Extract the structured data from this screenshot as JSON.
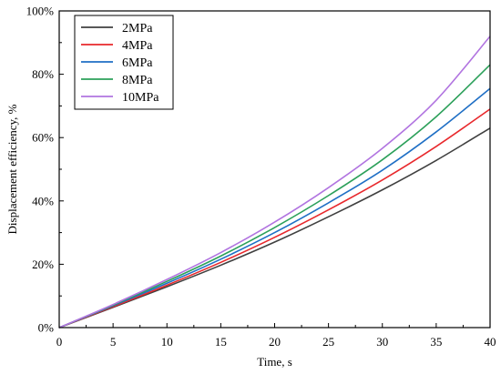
{
  "chart_data": {
    "type": "line",
    "title": "",
    "xlabel": "Time, s",
    "ylabel": "Displacement efficiency, %",
    "xlim": [
      0,
      40
    ],
    "ylim": [
      0,
      100
    ],
    "x_ticks": [
      0,
      5,
      10,
      15,
      20,
      25,
      30,
      35,
      40
    ],
    "y_ticks": [
      0,
      20,
      40,
      60,
      80,
      100
    ],
    "y_tick_suffix": "%",
    "grid": false,
    "legend_position": "top-left",
    "x": [
      0,
      5,
      10,
      15,
      20,
      25,
      30,
      35,
      40
    ],
    "series": [
      {
        "name": "2MPa",
        "color": "#404040",
        "values": [
          0,
          6.4,
          12.9,
          19.7,
          27.0,
          35.0,
          43.5,
          52.8,
          63.0
        ]
      },
      {
        "name": "4MPa",
        "color": "#e8282c",
        "values": [
          0,
          6.6,
          13.4,
          20.6,
          28.5,
          37.2,
          46.6,
          57.2,
          69.0
        ]
      },
      {
        "name": "6MPa",
        "color": "#1f6fc5",
        "values": [
          0,
          6.9,
          14.0,
          21.6,
          30.0,
          39.4,
          49.7,
          61.8,
          75.5
        ]
      },
      {
        "name": "8MPa",
        "color": "#2ca05a",
        "values": [
          0,
          7.1,
          14.6,
          22.6,
          31.6,
          41.7,
          53.0,
          66.6,
          83.0
        ]
      },
      {
        "name": "10MPa",
        "color": "#b174e0",
        "values": [
          0,
          7.3,
          15.2,
          23.7,
          33.3,
          44.2,
          56.6,
          71.8,
          92.0
        ]
      }
    ]
  }
}
